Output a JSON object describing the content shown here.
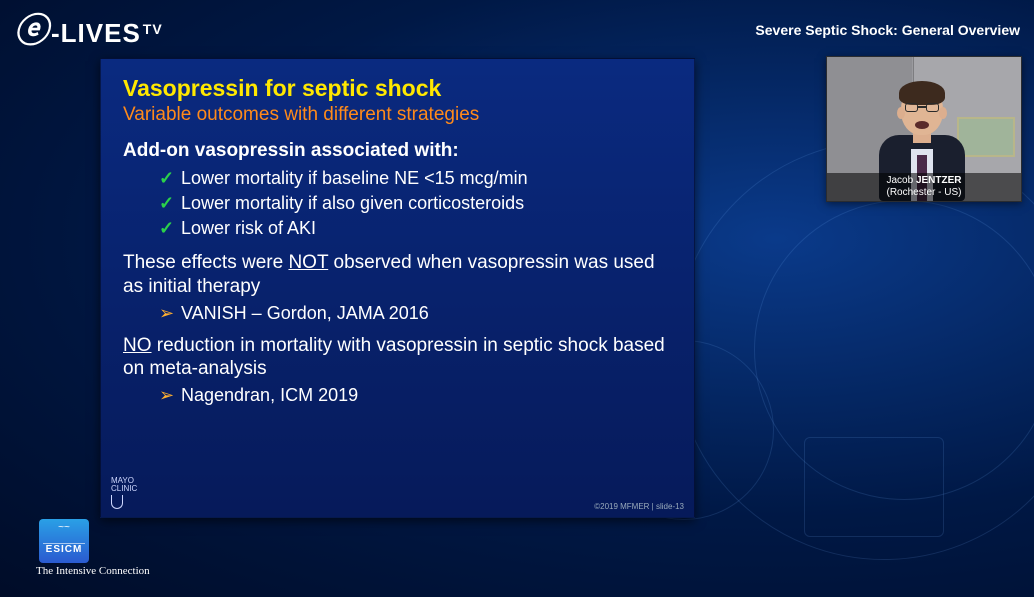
{
  "header": {
    "logo_prefix_glyph": "ⓔ",
    "logo_main": "-LIVES",
    "logo_suffix": "TV",
    "session_title": "Severe Septic Shock: General Overview"
  },
  "slide": {
    "title": "Vasopressin for septic shock",
    "subtitle": "Variable outcomes with different strategies",
    "lead": "Add-on vasopressin associated with:",
    "checks": [
      "Lower mortality if baseline NE <15 mcg/min",
      "Lower mortality if also given corticosteroids",
      "Lower risk of AKI"
    ],
    "para1_pre": "These effects were ",
    "para1_emph": "NOT",
    "para1_post": " observed when vasopressin was used as initial therapy",
    "ref1": "VANISH – Gordon, JAMA 2016",
    "para2_emph": "NO",
    "para2_post": " reduction in mortality with vasopressin in septic shock based on meta-analysis",
    "ref2": "Nagendran, ICM 2019",
    "footer_left_1": "MAYO",
    "footer_left_2": "CLINIC",
    "footer_right": "©2019 MFMER  |  slide-13",
    "colors": {
      "title": "#ffe800",
      "subtitle": "#ff8a1a",
      "body": "#ffffff",
      "check_mark": "#2bd14a",
      "arrow_mark": "#ffb030",
      "slide_bg_top": "#0a2a80",
      "slide_bg_bottom": "#061a5a"
    }
  },
  "pip": {
    "name_first": "Jacob",
    "name_last": "JENTZER",
    "affiliation": "(Rochester - US)"
  },
  "esicm": {
    "acronym": "ESICM",
    "tagline": "The Intensive Connection"
  }
}
